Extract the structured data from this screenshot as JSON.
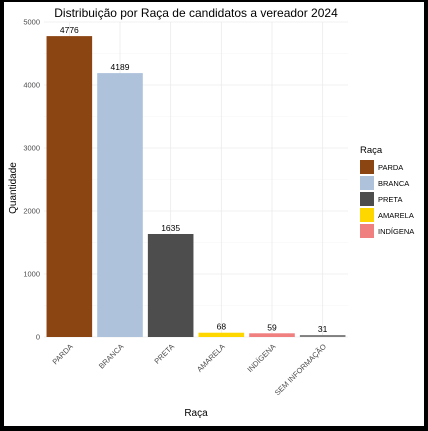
{
  "chart_data": {
    "type": "bar",
    "title": "Distribuição por Raça de candidatos a vereador 2024",
    "xlabel": "Raça",
    "ylabel": "Quantidade",
    "categories": [
      "PARDA",
      "BRANCA",
      "PRETA",
      "AMARELA",
      "INDÍGENA",
      "SEM INFORMAÇÃO"
    ],
    "values": [
      4776,
      4189,
      1635,
      68,
      59,
      31
    ],
    "labels": [
      "4776",
      "4189",
      "1635",
      "68",
      "59",
      "31"
    ],
    "colors": [
      "#8B4513",
      "#AEC2DC",
      "#4D4D4D",
      "#FFD700",
      "#F08080",
      "#808080"
    ],
    "ylim": [
      0,
      5000
    ],
    "yticks": [
      0,
      1000,
      2000,
      3000,
      4000,
      5000
    ],
    "ytick_labels": [
      "0",
      "1000",
      "2000",
      "3000",
      "4000",
      "5000"
    ],
    "grid": true,
    "legend": {
      "title": "Raça",
      "position": "right",
      "items": [
        {
          "label": "PARDA",
          "color": "#8B4513"
        },
        {
          "label": "BRANCA",
          "color": "#AEC2DC"
        },
        {
          "label": "PRETA",
          "color": "#4D4D4D"
        },
        {
          "label": "AMARELA",
          "color": "#FFD700"
        },
        {
          "label": "INDÍGENA",
          "color": "#F08080"
        }
      ]
    }
  }
}
